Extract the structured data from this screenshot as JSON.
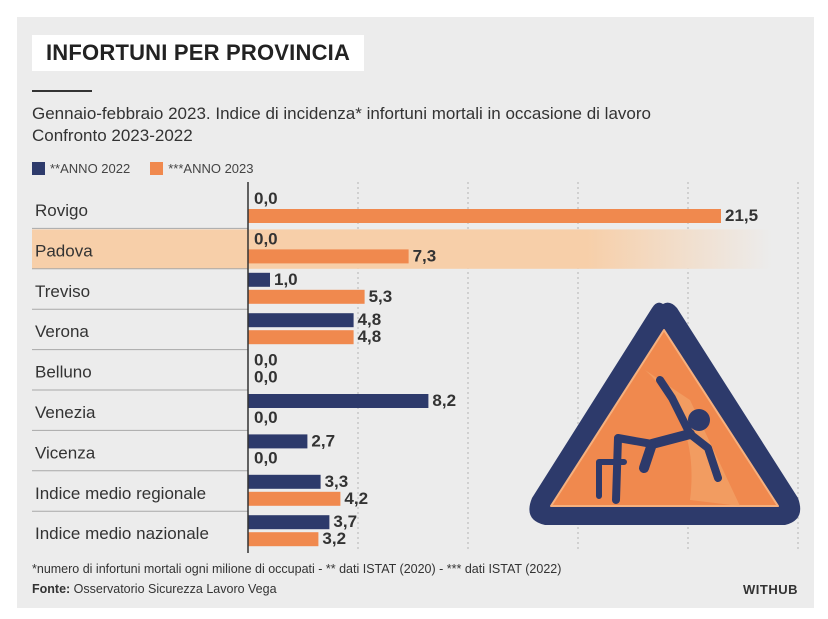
{
  "title": "INFORTUNI PER PROVINCIA",
  "subtitle_line1": "Gennaio-febbraio 2023. Indice di incidenza* infortuni mortali in occasione di lavoro",
  "subtitle_line2": "Confronto 2023-2022",
  "footnote": "*numero di infortuni mortali ogni milione di occupati - ** dati ISTAT (2020) - *** dati ISTAT (2022)",
  "source_label": "Fonte:",
  "source_text": " Osservatorio Sicurezza Lavoro Vega",
  "brand": "WITHUB",
  "colors": {
    "series_2022": "#2d3a6b",
    "series_2023": "#f0894e",
    "highlight": "#f7cfa9"
  },
  "chart_data": {
    "type": "bar",
    "orientation": "horizontal",
    "categories": [
      "Rovigo",
      "Padova",
      "Treviso",
      "Verona",
      "Belluno",
      "Venezia",
      "Vicenza",
      "Indice medio regionale",
      "Indice medio nazionale"
    ],
    "series": [
      {
        "name": "**ANNO 2022",
        "values": [
          0.0,
          0.0,
          1.0,
          4.8,
          0.0,
          8.2,
          2.7,
          3.3,
          3.7
        ],
        "labels": [
          "0,0",
          "0,0",
          "1,0",
          "4,8",
          "0,0",
          "8,2",
          "2,7",
          "3,3",
          "3,7"
        ]
      },
      {
        "name": "***ANNO 2023",
        "values": [
          21.5,
          7.3,
          5.3,
          4.8,
          0.0,
          0.0,
          0.0,
          4.2,
          3.2
        ],
        "labels": [
          "21,5",
          "7,3",
          "5,3",
          "4,8",
          "0,0",
          "0,0",
          "0,0",
          "4,2",
          "3,2"
        ]
      }
    ],
    "highlighted_category": "Padova",
    "xlim": [
      0,
      25
    ],
    "grid": true,
    "legend_position": "top-left"
  }
}
